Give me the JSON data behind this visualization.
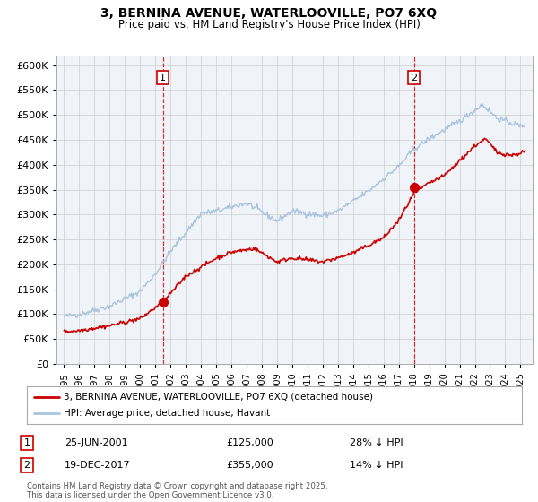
{
  "title": "3, BERNINA AVENUE, WATERLOOVILLE, PO7 6XQ",
  "subtitle": "Price paid vs. HM Land Registry's House Price Index (HPI)",
  "legend_line1": "3, BERNINA AVENUE, WATERLOOVILLE, PO7 6XQ (detached house)",
  "legend_line2": "HPI: Average price, detached house, Havant",
  "annotation1_date": "25-JUN-2001",
  "annotation1_price": "£125,000",
  "annotation1_hpi": "28% ↓ HPI",
  "annotation2_date": "19-DEC-2017",
  "annotation2_price": "£355,000",
  "annotation2_hpi": "14% ↓ HPI",
  "footer": "Contains HM Land Registry data © Crown copyright and database right 2025.\nThis data is licensed under the Open Government Licence v3.0.",
  "hpi_color": "#aac4e0",
  "price_color": "#cc0000",
  "vline_color": "#cc0000",
  "ylim": [
    0,
    620000
  ],
  "yticks": [
    0,
    50000,
    100000,
    150000,
    200000,
    250000,
    300000,
    350000,
    400000,
    450000,
    500000,
    550000,
    600000
  ],
  "sale1_year": 2001.5,
  "sale1_price": 125000,
  "sale2_year": 2018.0,
  "sale2_price": 355000,
  "bg_color": "#f0f4f8"
}
